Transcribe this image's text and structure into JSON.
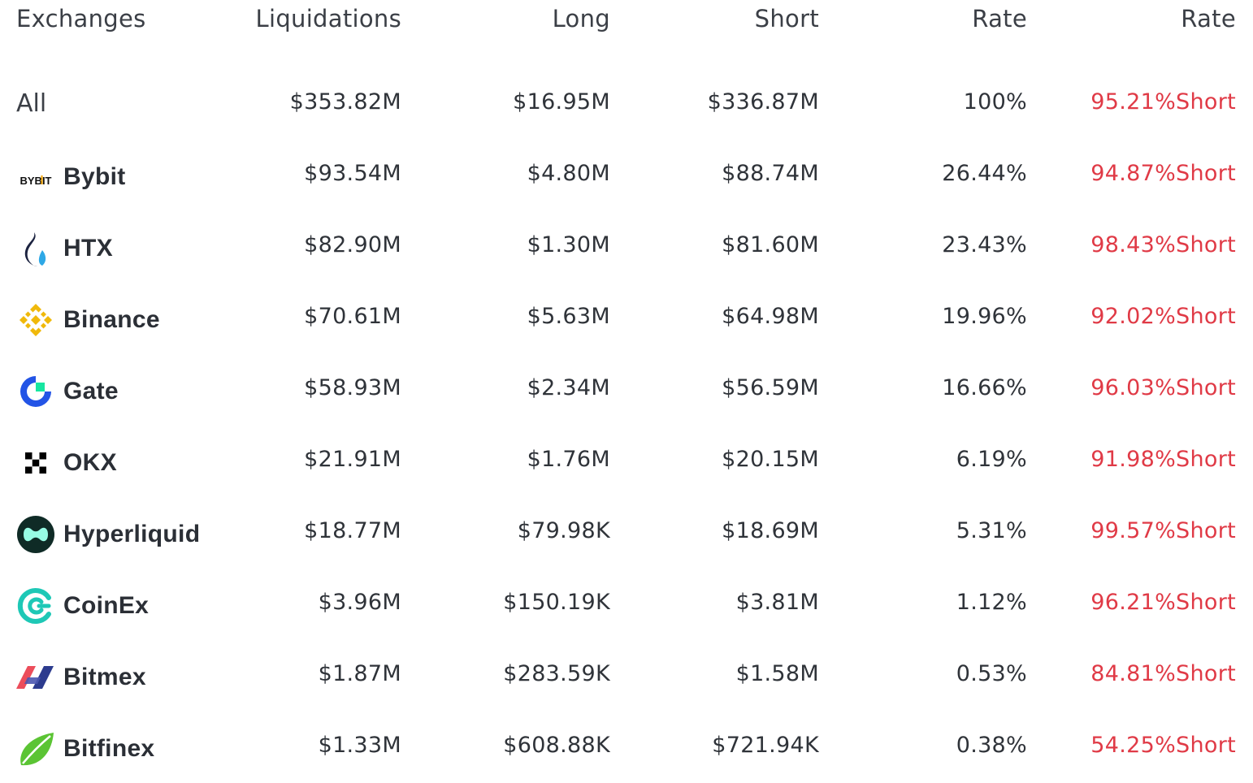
{
  "header": {
    "exchanges": "Exchanges",
    "liquidations": "Liquidations",
    "long": "Long",
    "short": "Short",
    "rate": "Rate",
    "ratio": "Rate"
  },
  "rows": [
    {
      "name": "All",
      "icon": "",
      "liquidations": "$353.82M",
      "long": "$16.95M",
      "short": "$336.87M",
      "rate": "100%",
      "ratio": "95.21%Short"
    },
    {
      "name": "Bybit",
      "icon": "bybit-logo-icon",
      "liquidations": "$93.54M",
      "long": "$4.80M",
      "short": "$88.74M",
      "rate": "26.44%",
      "ratio": "94.87%Short"
    },
    {
      "name": "HTX",
      "icon": "htx-logo-icon",
      "liquidations": "$82.90M",
      "long": "$1.30M",
      "short": "$81.60M",
      "rate": "23.43%",
      "ratio": "98.43%Short"
    },
    {
      "name": "Binance",
      "icon": "binance-logo-icon",
      "liquidations": "$70.61M",
      "long": "$5.63M",
      "short": "$64.98M",
      "rate": "19.96%",
      "ratio": "92.02%Short"
    },
    {
      "name": "Gate",
      "icon": "gate-logo-icon",
      "liquidations": "$58.93M",
      "long": "$2.34M",
      "short": "$56.59M",
      "rate": "16.66%",
      "ratio": "96.03%Short"
    },
    {
      "name": "OKX",
      "icon": "okx-logo-icon",
      "liquidations": "$21.91M",
      "long": "$1.76M",
      "short": "$20.15M",
      "rate": "6.19%",
      "ratio": "91.98%Short"
    },
    {
      "name": "Hyperliquid",
      "icon": "hyperliquid-logo-icon",
      "liquidations": "$18.77M",
      "long": "$79.98K",
      "short": "$18.69M",
      "rate": "5.31%",
      "ratio": "99.57%Short"
    },
    {
      "name": "CoinEx",
      "icon": "coinex-logo-icon",
      "liquidations": "$3.96M",
      "long": "$150.19K",
      "short": "$3.81M",
      "rate": "1.12%",
      "ratio": "96.21%Short"
    },
    {
      "name": "Bitmex",
      "icon": "bitmex-logo-icon",
      "liquidations": "$1.87M",
      "long": "$283.59K",
      "short": "$1.58M",
      "rate": "0.53%",
      "ratio": "84.81%Short"
    },
    {
      "name": "Bitfinex",
      "icon": "bitfinex-logo-icon",
      "liquidations": "$1.33M",
      "long": "$608.88K",
      "short": "$721.94K",
      "rate": "0.38%",
      "ratio": "54.25%Short"
    }
  ],
  "logo_text": {
    "bybit": "BYBIT"
  },
  "colors": {
    "short_ratio": "#e03a46",
    "text": "#2b2f36"
  }
}
